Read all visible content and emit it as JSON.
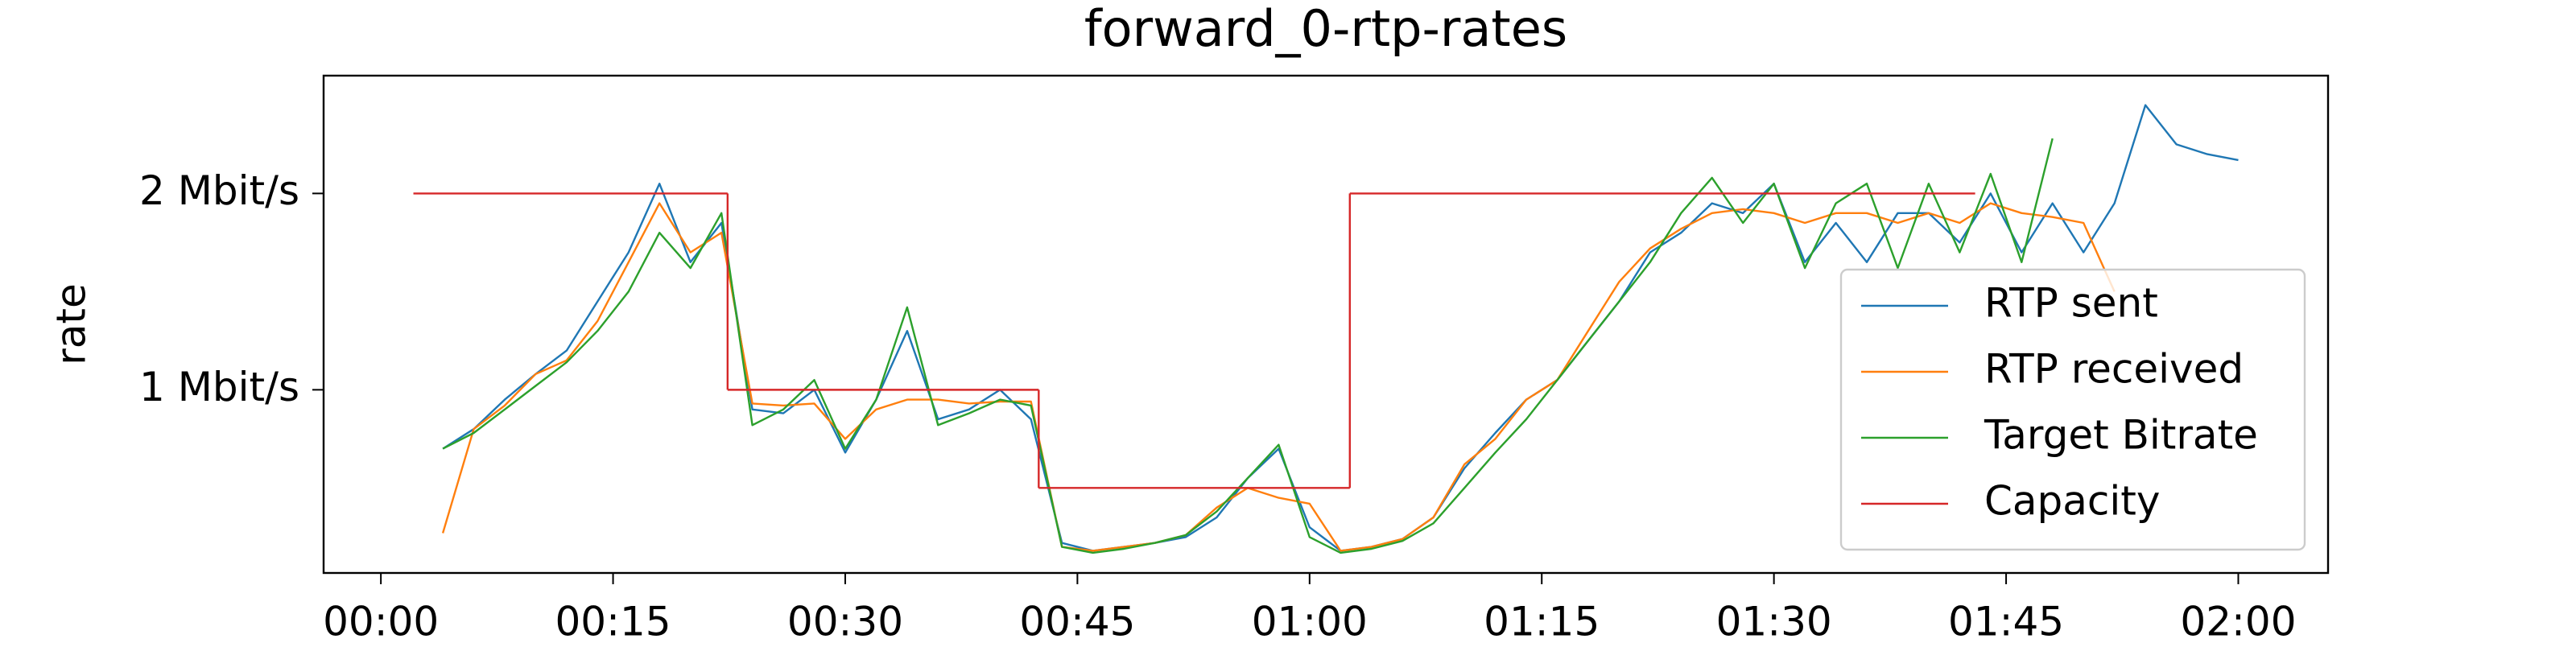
{
  "chart_data": {
    "type": "line",
    "title": "forward_0-rtp-rates",
    "y_label": "rate",
    "x": [
      4,
      6,
      8,
      10,
      12,
      14,
      16,
      18,
      20,
      22,
      24,
      26,
      28,
      30,
      32,
      34,
      36,
      38,
      40,
      42,
      44,
      46,
      48,
      50,
      52,
      54,
      56,
      58,
      60,
      62,
      64,
      66,
      68,
      70,
      72,
      74,
      76,
      78,
      80,
      82,
      84,
      86,
      88,
      90,
      92,
      94,
      96,
      98,
      100,
      102,
      104,
      106,
      108,
      110,
      112,
      114,
      116,
      118,
      120
    ],
    "xlim": [
      -3.7,
      125.8
    ],
    "xticks": [
      {
        "value": 0,
        "label": "00:00"
      },
      {
        "value": 15,
        "label": "00:15"
      },
      {
        "value": 30,
        "label": "00:30"
      },
      {
        "value": 45,
        "label": "00:45"
      },
      {
        "value": 60,
        "label": "01:00"
      },
      {
        "value": 75,
        "label": "01:15"
      },
      {
        "value": 90,
        "label": "01:30"
      },
      {
        "value": 105,
        "label": "01:45"
      },
      {
        "value": 120,
        "label": "02:00"
      }
    ],
    "ylim": [
      0.067,
      2.6
    ],
    "yticks": [
      {
        "value": 1,
        "label": "1 Mbit/s"
      },
      {
        "value": 2,
        "label": "2 Mbit/s"
      }
    ],
    "grid": false,
    "legend": "lower right",
    "series": [
      {
        "name": "RTP sent",
        "color": "#1f77b4",
        "values": [
          0.7,
          0.8,
          0.95,
          1.08,
          1.2,
          1.45,
          1.7,
          2.05,
          1.65,
          1.85,
          0.9,
          0.88,
          1.0,
          0.68,
          0.95,
          1.3,
          0.85,
          0.9,
          1.0,
          0.85,
          0.22,
          0.18,
          0.2,
          0.22,
          0.25,
          0.35,
          0.55,
          0.7,
          0.3,
          0.18,
          0.2,
          0.24,
          0.35,
          0.6,
          0.78,
          0.95,
          1.05,
          1.25,
          1.45,
          1.7,
          1.8,
          1.95,
          1.9,
          2.05,
          1.65,
          1.85,
          1.65,
          1.9,
          1.9,
          1.75,
          2.0,
          1.7,
          1.95,
          1.7,
          1.95,
          2.45,
          2.25,
          2.2,
          2.17
        ]
      },
      {
        "name": "RTP received",
        "color": "#ff7f0e",
        "values": [
          0.27,
          0.8,
          0.92,
          1.08,
          1.15,
          1.35,
          1.65,
          1.95,
          1.7,
          1.8,
          0.93,
          0.92,
          0.93,
          0.75,
          0.9,
          0.95,
          0.95,
          0.93,
          0.94,
          0.94,
          0.2,
          0.18,
          0.2,
          0.22,
          0.26,
          0.4,
          0.5,
          0.45,
          0.42,
          0.18,
          0.2,
          0.24,
          0.35,
          0.62,
          0.75,
          0.95,
          1.05,
          1.3,
          1.55,
          1.72,
          1.82,
          1.9,
          1.92,
          1.9,
          1.85,
          1.9,
          1.9,
          1.85,
          1.9,
          1.85,
          1.95,
          1.9,
          1.88,
          1.85,
          1.5,
          null,
          null,
          null,
          null
        ]
      },
      {
        "name": "Target Bitrate",
        "color": "#2ca02c",
        "values": [
          0.7,
          0.78,
          0.9,
          1.02,
          1.14,
          1.3,
          1.5,
          1.8,
          1.62,
          1.9,
          0.82,
          0.9,
          1.05,
          0.7,
          0.95,
          1.42,
          0.82,
          0.88,
          0.95,
          0.92,
          0.2,
          0.17,
          0.19,
          0.22,
          0.26,
          0.38,
          0.55,
          0.72,
          0.25,
          0.17,
          0.19,
          0.23,
          0.32,
          0.5,
          0.68,
          0.85,
          1.05,
          1.25,
          1.45,
          1.65,
          1.9,
          2.08,
          1.85,
          2.05,
          1.62,
          1.95,
          2.05,
          1.62,
          2.05,
          1.7,
          2.1,
          1.65,
          2.28,
          null,
          null,
          null,
          null,
          null,
          null
        ]
      },
      {
        "name": "Capacity",
        "color": "#d62728",
        "drawstyle": "steps-post",
        "x": [
          2.1,
          22.4,
          42.5,
          62.6,
          103
        ],
        "values": [
          2,
          1,
          0.5,
          2,
          2
        ]
      }
    ]
  }
}
